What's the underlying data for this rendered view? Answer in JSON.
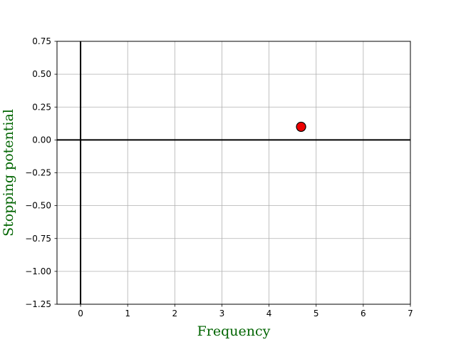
{
  "chart_data": {
    "type": "scatter",
    "title": "",
    "xlabel": "Frequency",
    "ylabel": "Stopping potential",
    "xlim": [
      -0.5,
      7
    ],
    "ylim": [
      -1.25,
      0.75
    ],
    "x_ticks": [
      0,
      1,
      2,
      3,
      4,
      5,
      6,
      7
    ],
    "y_ticks": [
      0.75,
      0.5,
      0.25,
      0.0,
      -0.25,
      -0.5,
      -0.75,
      -1.0,
      -1.25
    ],
    "x_tick_labels": [
      "0",
      "1",
      "2",
      "3",
      "4",
      "5",
      "6",
      "7"
    ],
    "y_tick_labels": [
      "0.75",
      "0.50",
      "0.25",
      "0.00",
      "−0.25",
      "−0.50",
      "−0.75",
      "−1.00",
      "−1.25"
    ],
    "grid": true,
    "reference_lines": {
      "x": 0,
      "y": 0
    },
    "series": [
      {
        "points": [
          {
            "x": 4.68,
            "y": 0.1
          }
        ],
        "color": "#ee0000",
        "edge_color": "#000000"
      }
    ],
    "label_color": "#006400"
  }
}
